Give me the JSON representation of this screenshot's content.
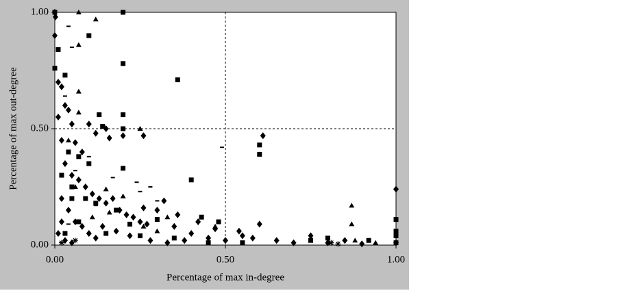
{
  "chart_data": {
    "type": "scatter",
    "x_label": "Percentage of max in-degree",
    "y_label": "Percentage of max out-degree",
    "xlim": [
      0,
      1
    ],
    "ylim": [
      0,
      1
    ],
    "xticks": [
      {
        "value": 0,
        "label": "0.00"
      },
      {
        "value": 0.5,
        "label": "0.50"
      },
      {
        "value": 1,
        "label": "1.00"
      }
    ],
    "yticks": [
      {
        "value": 0,
        "label": "0.00"
      },
      {
        "value": 0.5,
        "label": "0.50"
      },
      {
        "value": 1,
        "label": "1.00"
      }
    ],
    "ref_lines": {
      "x": 0.5,
      "y": 0.5
    },
    "series": [
      {
        "marker": "diamond",
        "color": "#000000",
        "x": [
          0,
          0.002,
          0,
          0.01,
          0.02,
          0.03,
          0.01,
          0.04,
          0.05,
          0.02,
          0.06,
          0.08,
          0.1,
          0.12,
          0.15,
          0.16,
          0.2,
          0.26,
          0.61,
          0.03,
          0.05,
          0.07,
          0.09,
          0.11,
          0.13,
          0.15,
          0.17,
          0.19,
          0.21,
          0.23,
          0.25,
          0.27,
          0.3,
          0.35,
          0.4,
          0.45,
          0.5,
          0.55,
          0.6,
          0.65,
          0.7,
          0.8,
          0.9,
          1,
          1,
          0.02,
          0.04,
          0.06,
          0.08,
          0.1,
          0.12,
          0.02,
          0.01,
          0.03,
          0.05,
          0.14,
          0.18,
          0.22,
          0.28,
          0.33,
          0.38,
          0.42,
          0.47,
          0.54,
          0.58,
          0.75,
          0.85,
          0.36,
          0.32,
          0.26
        ],
        "y": [
          1,
          0.98,
          0.9,
          0.7,
          0.68,
          0.6,
          0.55,
          0.58,
          0.52,
          0.45,
          0.44,
          0.4,
          0.52,
          0.48,
          0.5,
          0.46,
          0.47,
          0.47,
          0.47,
          0.35,
          0.3,
          0.28,
          0.25,
          0.22,
          0.2,
          0.18,
          0.2,
          0.15,
          0.13,
          0.12,
          0.1,
          0.09,
          0.15,
          0.08,
          0.05,
          0.03,
          0.02,
          0.04,
          0.09,
          0.02,
          0.01,
          0.01,
          0.005,
          0.24,
          0.01,
          0.2,
          0.15,
          0.1,
          0.08,
          0.05,
          0.03,
          0.1,
          0.05,
          0.02,
          0.01,
          0.08,
          0.06,
          0.04,
          0.02,
          0.01,
          0.02,
          0.1,
          0.07,
          0.06,
          0.03,
          0.04,
          0.02,
          0.13,
          0.19,
          0.16
        ]
      },
      {
        "marker": "square",
        "color": "#000000",
        "x": [
          0,
          0.2,
          0.1,
          0.2,
          0.36,
          0.03,
          0.13,
          0.2,
          0.14,
          0.2,
          0.6,
          0.6,
          0.4,
          0.2,
          0.1,
          0.07,
          0.04,
          0.02,
          0.05,
          0.09,
          0.12,
          0.18,
          0.22,
          0.3,
          0.43,
          0.48,
          0.55,
          0.75,
          0.8,
          0.92,
          1,
          1,
          1,
          1,
          0.07,
          0.03,
          0.15,
          0.25,
          0.35,
          0.45,
          0.01,
          0,
          0.05
        ],
        "y": [
          1,
          1,
          0.9,
          0.78,
          0.71,
          0.73,
          0.56,
          0.56,
          0.51,
          0.5,
          0.39,
          0.43,
          0.28,
          0.33,
          0.35,
          0.38,
          0.4,
          0.3,
          0.25,
          0.2,
          0.18,
          0.15,
          0.09,
          0.11,
          0.12,
          0.1,
          0.01,
          0.02,
          0.03,
          0.02,
          0.11,
          0.06,
          0.04,
          0.01,
          0.1,
          0.05,
          0.05,
          0.04,
          0.03,
          0.01,
          0.84,
          0.76,
          0.2
        ]
      },
      {
        "marker": "triangle",
        "color": "#000000",
        "x": [
          0.07,
          0.12,
          0.07,
          0.07,
          0.07,
          0.25,
          0.04,
          0.06,
          0.15,
          0.2,
          0.33,
          0.47,
          0.87,
          0.87,
          0.88,
          0.94,
          0.16,
          0.11,
          0.26,
          0.3
        ],
        "y": [
          1,
          0.97,
          0.86,
          0.66,
          0.57,
          0.5,
          0.45,
          0.25,
          0.24,
          0.21,
          0.12,
          0.08,
          0.17,
          0.09,
          0.02,
          0.01,
          0.14,
          0.12,
          0.08,
          0.06
        ]
      },
      {
        "marker": "dash",
        "color": "#000000",
        "x": [
          0.04,
          0.05,
          0.03,
          0.49,
          0.1,
          0.06,
          0.17,
          0.24,
          0.28,
          0.3,
          0.12,
          0.25,
          0.04
        ],
        "y": [
          0.94,
          0.85,
          0.64,
          0.42,
          0.38,
          0.32,
          0.29,
          0.27,
          0.25,
          0.19,
          0.17,
          0.23,
          0.09
        ]
      },
      {
        "marker": "star",
        "color": "#000000",
        "x": [
          0.83,
          0.81,
          0.02,
          0.06
        ],
        "y": [
          0.005,
          0.01,
          0.01,
          0.02
        ]
      }
    ]
  }
}
